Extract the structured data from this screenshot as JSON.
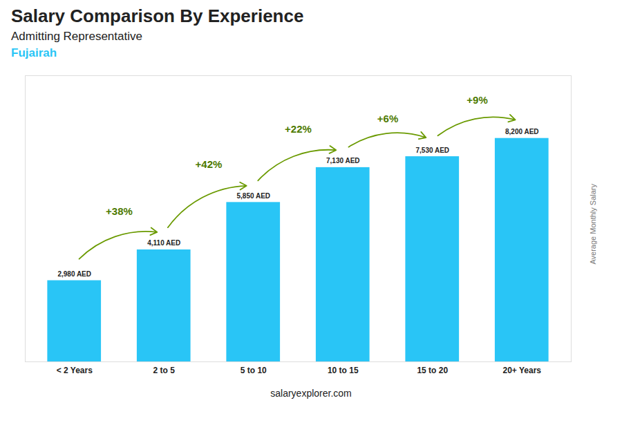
{
  "chart_data": {
    "type": "bar",
    "title": "Salary Comparison By Experience",
    "subtitle": "Admitting Representative",
    "annotations": [
      "Fujairah",
      "salaryexplorer.com"
    ],
    "ylabel": "Average Monthly Salary",
    "categories": [
      "< 2 Years",
      "2 to 5",
      "5 to 10",
      "10 to 15",
      "15 to 20",
      "20+ Years"
    ],
    "values": [
      2980,
      4110,
      5850,
      7130,
      7530,
      8200
    ],
    "value_labels": [
      "2,980 AED",
      "4,110 AED",
      "5,850 AED",
      "7,130 AED",
      "7,530 AED",
      "8,200 AED"
    ],
    "change_labels": [
      "+38%",
      "+42%",
      "+22%",
      "+6%",
      "+9%"
    ],
    "color": "#29C5F6",
    "ylim": [
      0,
      10500
    ],
    "grid": false,
    "data_labels": true,
    "tick_labels": "x"
  }
}
